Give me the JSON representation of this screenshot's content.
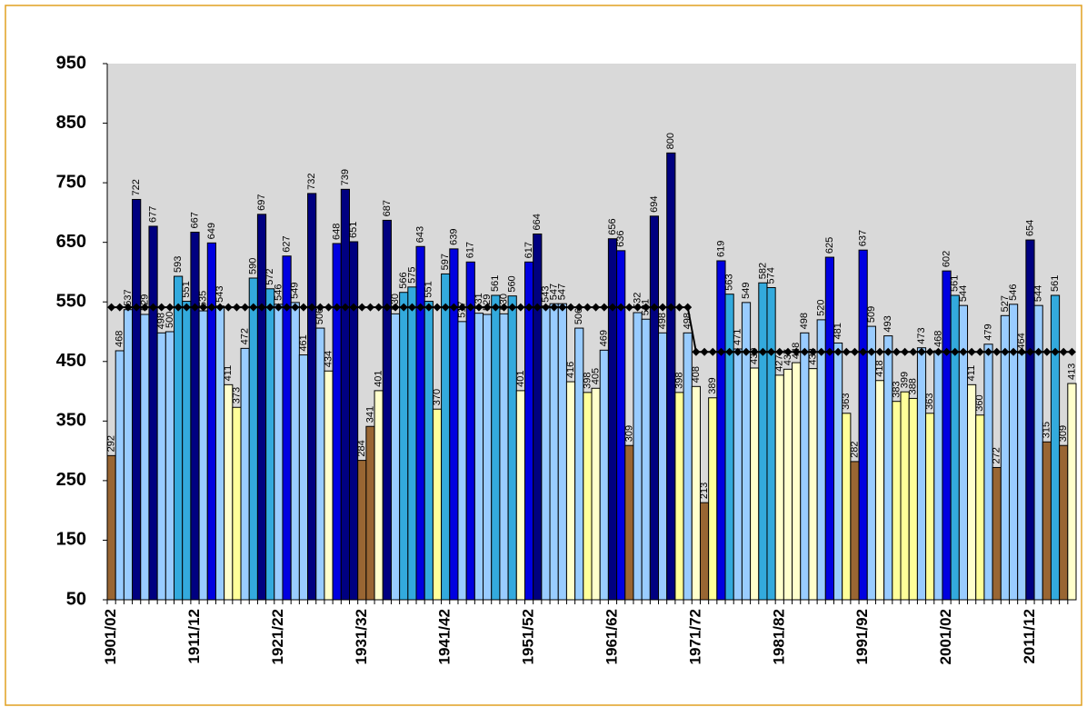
{
  "chart_data": {
    "type": "bar",
    "categories": [
      "1901/02",
      null,
      null,
      null,
      null,
      null,
      null,
      null,
      null,
      null,
      "1911/12",
      null,
      null,
      null,
      null,
      null,
      null,
      null,
      null,
      null,
      "1921/22",
      null,
      null,
      null,
      null,
      null,
      null,
      null,
      null,
      null,
      "1931/32",
      null,
      null,
      null,
      null,
      null,
      null,
      null,
      null,
      null,
      "1941/42",
      null,
      null,
      null,
      null,
      null,
      null,
      null,
      null,
      null,
      "1951/52",
      null,
      null,
      null,
      null,
      null,
      null,
      null,
      null,
      null,
      "1961/62",
      null,
      null,
      null,
      null,
      null,
      null,
      null,
      null,
      null,
      "1971/72",
      null,
      null,
      null,
      null,
      null,
      null,
      null,
      null,
      null,
      "1981/82",
      null,
      null,
      null,
      null,
      null,
      null,
      null,
      null,
      null,
      "1991/92",
      null,
      null,
      null,
      null,
      null,
      null,
      null,
      null,
      null,
      "2001/02",
      null,
      null,
      null,
      null,
      null,
      null,
      null,
      null,
      null,
      "2011/12",
      null,
      null,
      null,
      null,
      null
    ],
    "values": [
      292,
      468,
      537,
      722,
      529,
      677,
      498,
      500,
      593,
      551,
      667,
      535,
      649,
      543,
      411,
      373,
      472,
      590,
      697,
      572,
      546,
      627,
      549,
      461,
      732,
      506,
      434,
      648,
      739,
      651,
      284,
      341,
      401,
      687,
      530,
      566,
      575,
      643,
      551,
      370,
      597,
      639,
      517,
      617,
      531,
      529,
      561,
      530,
      560,
      401,
      617,
      664,
      543,
      547,
      547,
      416,
      506,
      398,
      405,
      469,
      656,
      636,
      309,
      532,
      521,
      694,
      498,
      800,
      398,
      498,
      408,
      213,
      389,
      619,
      563,
      471,
      549,
      439,
      582,
      574,
      427,
      437,
      448,
      498,
      438,
      520,
      625,
      481,
      363,
      282,
      637,
      509,
      418,
      493,
      383,
      399,
      388,
      473,
      363,
      468,
      602,
      561,
      544,
      411,
      360,
      479,
      272,
      527,
      546,
      464,
      654,
      544,
      315,
      561,
      309,
      413
    ],
    "colors": [
      "#996633",
      "#99ccff",
      "#99ccff",
      "#000080",
      "#99ccff",
      "#000080",
      "#99ccff",
      "#99ccff",
      "#33aadd",
      "#33aadd",
      "#000080",
      "#99ccff",
      "#0000e0",
      "#99ccff",
      "#ffffcc",
      "#ffff99",
      "#99ccff",
      "#33aadd",
      "#000080",
      "#33aadd",
      "#99ccff",
      "#0000e0",
      "#99ccff",
      "#99ccff",
      "#000080",
      "#99ccff",
      "#ffffcc",
      "#0000e0",
      "#000080",
      "#000080",
      "#996633",
      "#996633",
      "#ffffcc",
      "#000080",
      "#99ccff",
      "#33aadd",
      "#33aadd",
      "#0000e0",
      "#33aadd",
      "#ffff99",
      "#33aadd",
      "#0000e0",
      "#99ccff",
      "#0000e0",
      "#99ccff",
      "#99ccff",
      "#33aadd",
      "#99ccff",
      "#33aadd",
      "#ffffcc",
      "#0000e0",
      "#000080",
      "#99ccff",
      "#99ccff",
      "#99ccff",
      "#ffffcc",
      "#99ccff",
      "#ffff99",
      "#ffffcc",
      "#99ccff",
      "#000080",
      "#0000e0",
      "#996633",
      "#99ccff",
      "#99ccff",
      "#000080",
      "#99ccff",
      "#000080",
      "#ffff99",
      "#99ccff",
      "#ffffcc",
      "#996633",
      "#ffff99",
      "#0000e0",
      "#33aadd",
      "#99ccff",
      "#99ccff",
      "#ffffcc",
      "#33aadd",
      "#33aadd",
      "#ffffcc",
      "#ffffcc",
      "#ffffcc",
      "#99ccff",
      "#ffffcc",
      "#99ccff",
      "#0000e0",
      "#99ccff",
      "#ffff99",
      "#996633",
      "#0000e0",
      "#99ccff",
      "#ffffcc",
      "#99ccff",
      "#ffff99",
      "#ffff99",
      "#ffff99",
      "#99ccff",
      "#ffff99",
      "#99ccff",
      "#0000e0",
      "#33aadd",
      "#99ccff",
      "#ffffcc",
      "#ffff99",
      "#99ccff",
      "#996633",
      "#99ccff",
      "#99ccff",
      "#99ccff",
      "#000080",
      "#99ccff",
      "#996633",
      "#33aadd",
      "#996633",
      "#ffffcc"
    ],
    "mean_line": {
      "color": "#000000",
      "values": [
        541,
        541,
        541,
        541,
        541,
        541,
        541,
        541,
        541,
        541,
        541,
        541,
        541,
        541,
        541,
        541,
        541,
        541,
        541,
        541,
        541,
        541,
        541,
        541,
        541,
        541,
        541,
        541,
        541,
        541,
        541,
        541,
        541,
        541,
        541,
        541,
        541,
        541,
        541,
        541,
        541,
        541,
        541,
        541,
        541,
        541,
        541,
        541,
        541,
        541,
        541,
        541,
        541,
        541,
        541,
        541,
        541,
        541,
        541,
        541,
        541,
        541,
        541,
        541,
        541,
        541,
        541,
        541,
        541,
        541,
        466,
        466,
        466,
        466,
        466,
        466,
        466,
        466,
        466,
        466,
        466,
        466,
        466,
        466,
        466,
        466,
        466,
        466,
        466,
        466,
        466,
        466,
        466,
        466,
        466,
        466,
        466,
        466,
        466,
        466,
        466,
        466,
        466,
        466,
        466,
        466,
        466,
        466,
        466,
        466,
        466,
        466,
        466,
        466,
        466,
        466
      ]
    },
    "ylim": [
      50,
      950
    ],
    "yticks": [
      50,
      150,
      250,
      350,
      450,
      550,
      650,
      750,
      850,
      950
    ],
    "plot_background": "#d9d9d9"
  }
}
